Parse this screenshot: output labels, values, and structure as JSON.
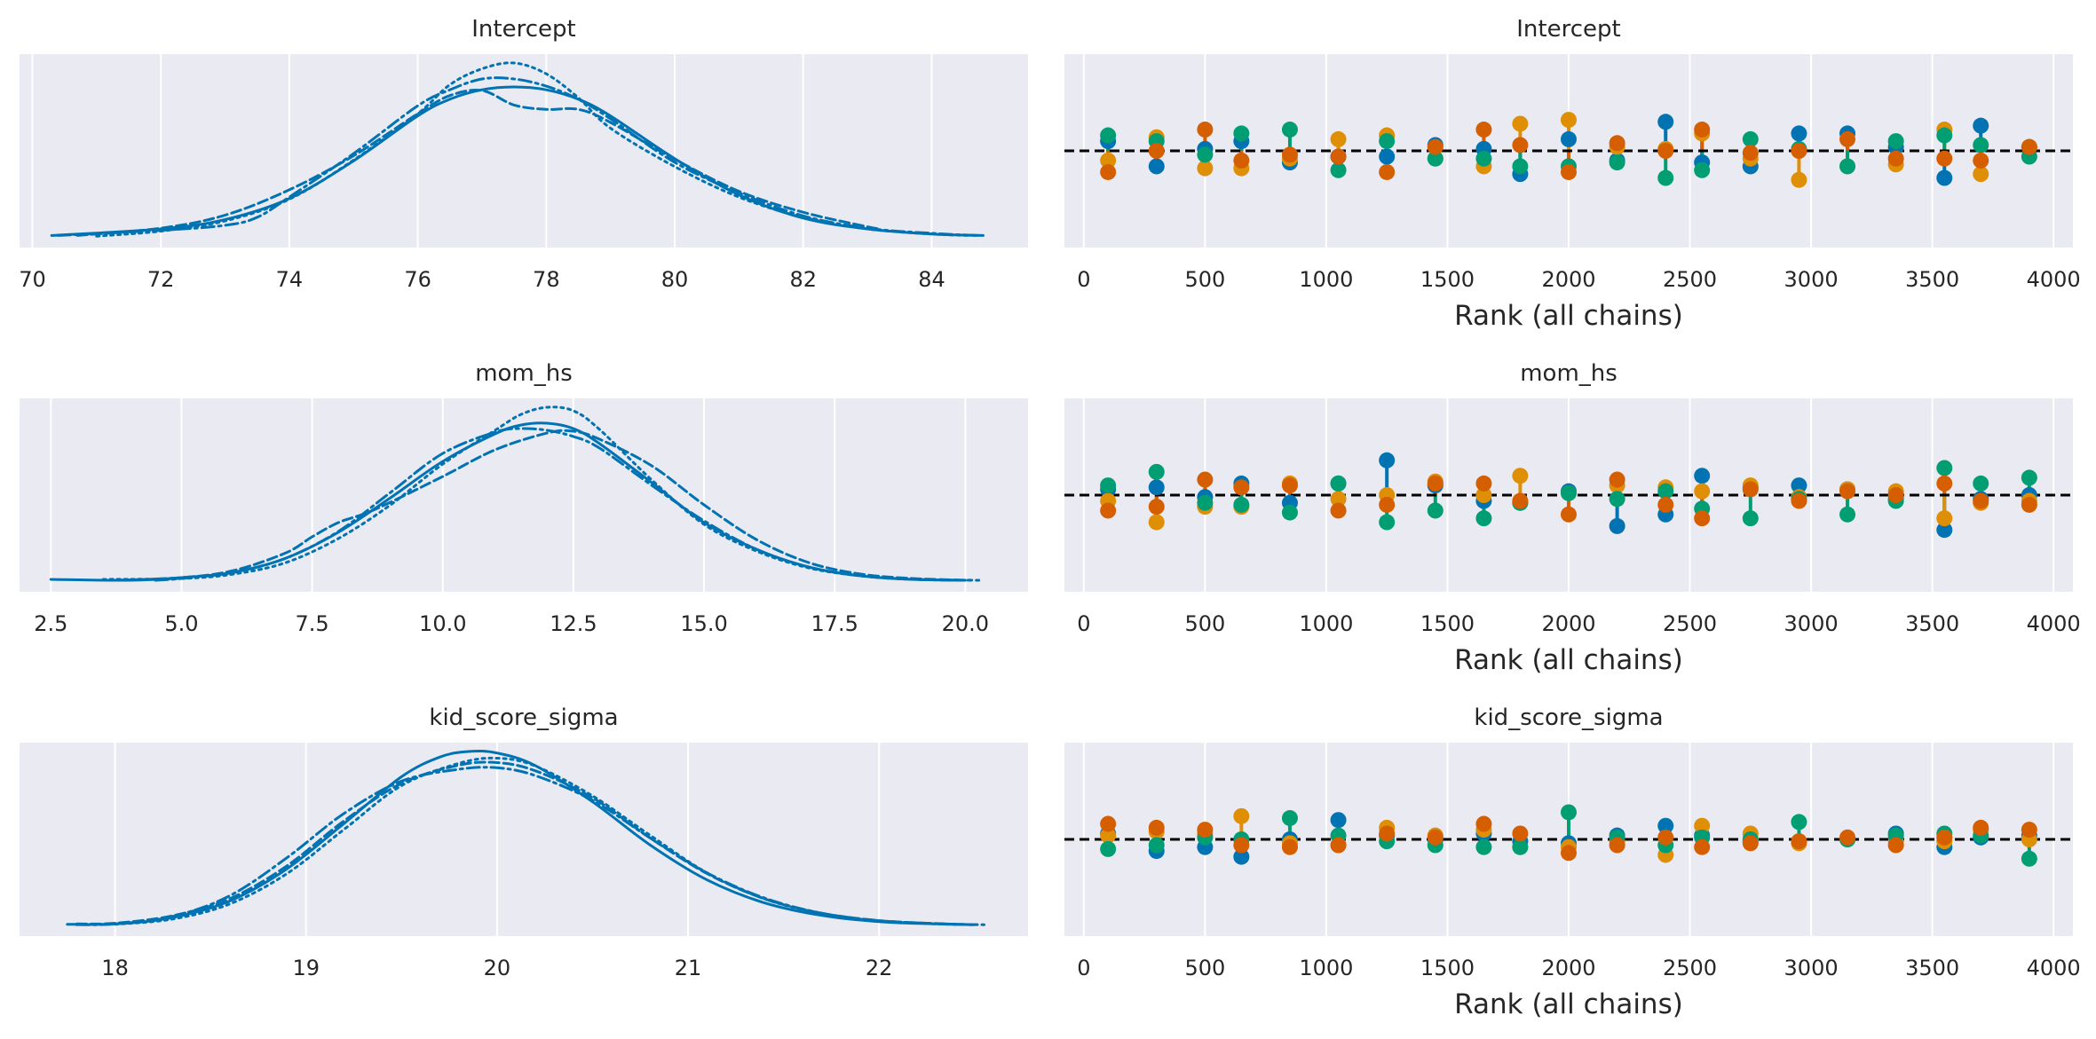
{
  "figure": {
    "background": "#ffffff",
    "axes_facecolor": "#eaeaf2",
    "grid_color": "#ffffff",
    "line_color": "#0173b2",
    "chain_colors": [
      "#0173b2",
      "#de8f05",
      "#029e73",
      "#d55e00"
    ],
    "reference_line_color": "#000000"
  },
  "chart_data": [
    {
      "type": "line",
      "panel": "Intercept density",
      "title": "Intercept",
      "xlabel": "",
      "xlim": [
        69.8,
        85.5
      ],
      "xticks": [
        70,
        72,
        74,
        76,
        78,
        80,
        82,
        84
      ],
      "xtick_labels": [
        "70",
        "72",
        "74",
        "76",
        "78",
        "80",
        "82",
        "84"
      ],
      "yticks_visible": false,
      "grid": "vertical",
      "series": [
        {
          "linestyle": "solid",
          "x": [
            70.3,
            72,
            73,
            74,
            75,
            76,
            76.5,
            77,
            77.5,
            78,
            78.5,
            79,
            80,
            81,
            82,
            83,
            84,
            84.8
          ],
          "y": [
            0.002,
            0.011,
            0.024,
            0.053,
            0.105,
            0.167,
            0.19,
            0.203,
            0.207,
            0.203,
            0.19,
            0.167,
            0.108,
            0.058,
            0.026,
            0.011,
            0.004,
            0.002
          ]
        },
        {
          "linestyle": "dashed",
          "x": [
            70.7,
            72,
            73,
            74,
            75,
            76,
            76.5,
            77,
            77.5,
            78,
            78.5,
            79,
            80,
            81,
            82,
            83,
            83.2
          ],
          "y": [
            0.002,
            0.012,
            0.03,
            0.065,
            0.112,
            0.17,
            0.195,
            0.202,
            0.182,
            0.176,
            0.176,
            0.158,
            0.107,
            0.063,
            0.034,
            0.014,
            0.011
          ]
        },
        {
          "linestyle": "dotted",
          "x": [
            71,
            72,
            73,
            74,
            75,
            76,
            76.5,
            77,
            77.5,
            78,
            78.5,
            79,
            80,
            81,
            82,
            83,
            84,
            84.6
          ],
          "y": [
            0.001,
            0.008,
            0.022,
            0.052,
            0.106,
            0.17,
            0.21,
            0.232,
            0.24,
            0.225,
            0.192,
            0.15,
            0.097,
            0.055,
            0.027,
            0.011,
            0.004,
            0.002
          ]
        },
        {
          "linestyle": "dashdot",
          "x": [
            70.4,
            72,
            73,
            73.5,
            74,
            75,
            76,
            76.5,
            77,
            77.5,
            78,
            78.5,
            79,
            80,
            81,
            82,
            83,
            84,
            84.7
          ],
          "y": [
            0.002,
            0.009,
            0.016,
            0.027,
            0.055,
            0.115,
            0.181,
            0.203,
            0.218,
            0.218,
            0.208,
            0.19,
            0.163,
            0.103,
            0.061,
            0.029,
            0.012,
            0.005,
            0.002
          ]
        }
      ]
    },
    {
      "type": "scatter",
      "panel": "Intercept rank",
      "title": "Intercept",
      "xlabel": "Rank (all chains)",
      "xlim": [
        -80,
        4080
      ],
      "ylim": [
        0,
        1
      ],
      "xticks": [
        0,
        500,
        1000,
        1500,
        2000,
        2500,
        3000,
        3500,
        4000
      ],
      "xtick_labels": [
        "0",
        "500",
        "1000",
        "1500",
        "2000",
        "2500",
        "3000",
        "3500",
        "4000"
      ],
      "yticks_visible": false,
      "grid": "vertical",
      "reference_line": {
        "y": 0.5,
        "style": "dashed"
      },
      "bin_centers": [
        100,
        300,
        500,
        650,
        850,
        1050,
        1250,
        1450,
        1650,
        1800,
        2000,
        2200,
        2400,
        2550,
        2750,
        2950,
        3150,
        3350,
        3550,
        3700,
        3900
      ],
      "series": [
        {
          "chain": 0,
          "values": [
            0.55,
            0.42,
            0.51,
            0.55,
            0.44,
            0.47,
            0.47,
            0.53,
            0.51,
            0.38,
            0.56,
            0.45,
            0.65,
            0.44,
            0.42,
            0.59,
            0.59,
            0.52,
            0.36,
            0.63,
            0.52
          ]
        },
        {
          "chain": 1,
          "values": [
            0.45,
            0.57,
            0.41,
            0.41,
            0.46,
            0.56,
            0.58,
            0.46,
            0.42,
            0.64,
            0.66,
            0.52,
            0.51,
            0.59,
            0.46,
            0.35,
            0.42,
            0.43,
            0.61,
            0.38,
            0.52
          ]
        },
        {
          "chain": 2,
          "values": [
            0.58,
            0.55,
            0.48,
            0.59,
            0.61,
            0.4,
            0.55,
            0.46,
            0.46,
            0.42,
            0.42,
            0.44,
            0.36,
            0.4,
            0.56,
            0.51,
            0.42,
            0.55,
            0.58,
            0.53,
            0.47
          ]
        },
        {
          "chain": 3,
          "values": [
            0.39,
            0.5,
            0.61,
            0.45,
            0.48,
            0.47,
            0.39,
            0.52,
            0.61,
            0.53,
            0.39,
            0.54,
            0.5,
            0.61,
            0.49,
            0.5,
            0.56,
            0.46,
            0.46,
            0.45,
            0.52
          ]
        }
      ]
    },
    {
      "type": "line",
      "panel": "mom_hs density",
      "title": "mom_hs",
      "xlabel": "",
      "xlim": [
        1.9,
        21.2
      ],
      "xticks": [
        2.5,
        5.0,
        7.5,
        10.0,
        12.5,
        15.0,
        17.5,
        20.0
      ],
      "xtick_labels": [
        "2.5",
        "5.0",
        "7.5",
        "10.0",
        "12.5",
        "15.0",
        "17.5",
        "20.0"
      ],
      "yticks_visible": false,
      "grid": "vertical",
      "series": [
        {
          "linestyle": "solid",
          "x": [
            2.5,
            4,
            5,
            6,
            7,
            8,
            9,
            10,
            11,
            11.5,
            12,
            12.5,
            13,
            14,
            15,
            16,
            17,
            18,
            19,
            20
          ],
          "y": [
            0.002,
            0.001,
            0.004,
            0.01,
            0.026,
            0.055,
            0.094,
            0.135,
            0.166,
            0.176,
            0.178,
            0.172,
            0.155,
            0.111,
            0.066,
            0.036,
            0.016,
            0.006,
            0.002,
            0.001
          ]
        },
        {
          "linestyle": "dashed",
          "x": [
            3.7,
            5,
            6,
            7,
            7.5,
            8,
            8.5,
            9,
            10,
            11,
            12,
            12.5,
            13,
            14,
            15,
            16,
            17,
            18,
            19,
            20.1
          ],
          "y": [
            0.001,
            0.004,
            0.012,
            0.032,
            0.05,
            0.066,
            0.076,
            0.089,
            0.118,
            0.148,
            0.167,
            0.169,
            0.16,
            0.13,
            0.086,
            0.047,
            0.021,
            0.008,
            0.003,
            0.001
          ]
        },
        {
          "linestyle": "dotted",
          "x": [
            3.5,
            5,
            6,
            7,
            8,
            9,
            10,
            11,
            11.5,
            12,
            12.5,
            13,
            14,
            15,
            16,
            17,
            18,
            19,
            20.3
          ],
          "y": [
            0.002,
            0.003,
            0.008,
            0.021,
            0.048,
            0.086,
            0.132,
            0.17,
            0.188,
            0.196,
            0.192,
            0.171,
            0.114,
            0.064,
            0.034,
            0.015,
            0.006,
            0.002,
            0.001
          ]
        },
        {
          "linestyle": "dashdot",
          "x": [
            4.5,
            5,
            6,
            7,
            8,
            9,
            10,
            11,
            11.5,
            12,
            12.5,
            13,
            14,
            15,
            16,
            17,
            18,
            19,
            20
          ],
          "y": [
            0.001,
            0.003,
            0.01,
            0.026,
            0.056,
            0.1,
            0.144,
            0.168,
            0.172,
            0.17,
            0.163,
            0.15,
            0.108,
            0.068,
            0.036,
            0.016,
            0.006,
            0.002,
            0.001
          ]
        }
      ]
    },
    {
      "type": "scatter",
      "panel": "mom_hs rank",
      "title": "mom_hs",
      "xlabel": "Rank (all chains)",
      "xlim": [
        -80,
        4080
      ],
      "ylim": [
        0,
        1
      ],
      "xticks": [
        0,
        500,
        1000,
        1500,
        2000,
        2500,
        3000,
        3500,
        4000
      ],
      "xtick_labels": [
        "0",
        "500",
        "1000",
        "1500",
        "2000",
        "2500",
        "3000",
        "3500",
        "4000"
      ],
      "yticks_visible": false,
      "grid": "vertical",
      "reference_line": {
        "y": 0.5,
        "style": "dashed"
      },
      "bin_centers": [
        100,
        300,
        500,
        650,
        850,
        1050,
        1250,
        1450,
        1650,
        1800,
        2000,
        2200,
        2400,
        2550,
        2750,
        2950,
        3150,
        3350,
        3550,
        3700,
        3900
      ],
      "series": [
        {
          "chain": 0,
          "values": [
            0.53,
            0.54,
            0.49,
            0.56,
            0.46,
            0.56,
            0.68,
            0.55,
            0.47,
            0.46,
            0.52,
            0.34,
            0.4,
            0.6,
            0.54,
            0.55,
            0.53,
            0.48,
            0.32,
            0.48,
            0.5
          ]
        },
        {
          "chain": 1,
          "values": [
            0.47,
            0.36,
            0.44,
            0.44,
            0.56,
            0.48,
            0.5,
            0.57,
            0.5,
            0.6,
            0.51,
            0.55,
            0.54,
            0.52,
            0.55,
            0.49,
            0.53,
            0.52,
            0.38,
            0.46,
            0.47
          ]
        },
        {
          "chain": 2,
          "values": [
            0.55,
            0.62,
            0.46,
            0.45,
            0.41,
            0.56,
            0.36,
            0.42,
            0.38,
            0.46,
            0.51,
            0.48,
            0.52,
            0.43,
            0.38,
            0.48,
            0.4,
            0.47,
            0.64,
            0.56,
            0.59
          ]
        },
        {
          "chain": 3,
          "values": [
            0.42,
            0.44,
            0.58,
            0.54,
            0.55,
            0.42,
            0.45,
            0.56,
            0.56,
            0.47,
            0.4,
            0.58,
            0.45,
            0.38,
            0.53,
            0.47,
            0.52,
            0.5,
            0.56,
            0.47,
            0.45
          ]
        }
      ]
    },
    {
      "type": "line",
      "panel": "kid_score_sigma density",
      "title": "kid_score_sigma",
      "xlabel": "",
      "xlim": [
        17.5,
        22.78
      ],
      "xticks": [
        18,
        19,
        20,
        21,
        22
      ],
      "xtick_labels": [
        "18",
        "19",
        "20",
        "21",
        "22"
      ],
      "yticks_visible": false,
      "grid": "vertical",
      "series": [
        {
          "linestyle": "solid",
          "x": [
            17.75,
            18,
            18.3,
            18.6,
            18.9,
            19.2,
            19.5,
            19.7,
            19.85,
            20,
            20.2,
            20.5,
            20.8,
            21.1,
            21.4,
            21.7,
            22,
            22.3,
            22.5
          ],
          "y": [
            0.003,
            0.004,
            0.021,
            0.066,
            0.153,
            0.276,
            0.402,
            0.455,
            0.47,
            0.466,
            0.432,
            0.334,
            0.218,
            0.123,
            0.061,
            0.027,
            0.01,
            0.004,
            0.002
          ]
        },
        {
          "linestyle": "dashed",
          "x": [
            17.8,
            18,
            18.3,
            18.6,
            18.9,
            19.2,
            19.5,
            19.8,
            20,
            20.2,
            20.5,
            20.8,
            21.1,
            21.4,
            21.7,
            22,
            22.3,
            22.5
          ],
          "y": [
            0.004,
            0.006,
            0.026,
            0.072,
            0.161,
            0.283,
            0.384,
            0.433,
            0.44,
            0.418,
            0.345,
            0.237,
            0.14,
            0.072,
            0.033,
            0.013,
            0.005,
            0.002
          ]
        },
        {
          "linestyle": "dotted",
          "x": [
            18,
            18.3,
            18.6,
            18.9,
            19.2,
            19.5,
            19.8,
            20,
            20.2,
            20.5,
            20.8,
            21.1,
            21.4,
            21.7,
            22,
            22.3,
            22.55
          ],
          "y": [
            0.003,
            0.017,
            0.058,
            0.14,
            0.26,
            0.378,
            0.438,
            0.452,
            0.431,
            0.35,
            0.244,
            0.142,
            0.072,
            0.032,
            0.012,
            0.004,
            0.002
          ]
        },
        {
          "linestyle": "dashdot",
          "x": [
            17.8,
            18,
            18.3,
            18.6,
            18.9,
            19.2,
            19.5,
            19.8,
            20,
            20.2,
            20.5,
            20.8,
            21.1,
            21.4,
            21.7,
            22,
            22.3,
            22.5
          ],
          "y": [
            0.002,
            0.004,
            0.024,
            0.08,
            0.183,
            0.303,
            0.39,
            0.422,
            0.426,
            0.405,
            0.338,
            0.237,
            0.142,
            0.074,
            0.033,
            0.013,
            0.005,
            0.002
          ]
        }
      ]
    },
    {
      "type": "scatter",
      "panel": "kid_score_sigma rank",
      "title": "kid_score_sigma",
      "xlabel": "Rank (all chains)",
      "xlim": [
        -80,
        4080
      ],
      "ylim": [
        0,
        1
      ],
      "xticks": [
        0,
        500,
        1000,
        1500,
        2000,
        2500,
        3000,
        3500,
        4000
      ],
      "xtick_labels": [
        "0",
        "500",
        "1000",
        "1500",
        "2000",
        "2500",
        "3000",
        "3500",
        "4000"
      ],
      "yticks_visible": false,
      "grid": "vertical",
      "reference_line": {
        "y": 0.5,
        "style": "dashed"
      },
      "bin_centers": [
        100,
        300,
        500,
        650,
        850,
        1050,
        1250,
        1450,
        1650,
        1800,
        2000,
        2200,
        2400,
        2550,
        2750,
        2950,
        3150,
        3350,
        3550,
        3700,
        3900
      ],
      "series": [
        {
          "chain": 0,
          "values": [
            0.53,
            0.44,
            0.46,
            0.41,
            0.5,
            0.6,
            0.52,
            0.5,
            0.53,
            0.49,
            0.48,
            0.52,
            0.57,
            0.52,
            0.49,
            0.49,
            0.5,
            0.53,
            0.46,
            0.51,
            0.52
          ]
        },
        {
          "chain": 1,
          "values": [
            0.52,
            0.54,
            0.53,
            0.62,
            0.48,
            0.47,
            0.56,
            0.52,
            0.55,
            0.46,
            0.46,
            0.49,
            0.42,
            0.57,
            0.53,
            0.48,
            0.5,
            0.49,
            0.49,
            0.55,
            0.5
          ]
        },
        {
          "chain": 2,
          "values": [
            0.45,
            0.47,
            0.51,
            0.5,
            0.61,
            0.52,
            0.49,
            0.47,
            0.46,
            0.46,
            0.64,
            0.51,
            0.47,
            0.51,
            0.5,
            0.59,
            0.5,
            0.52,
            0.53,
            0.52,
            0.4
          ]
        },
        {
          "chain": 3,
          "values": [
            0.58,
            0.56,
            0.55,
            0.47,
            0.46,
            0.47,
            0.53,
            0.51,
            0.58,
            0.53,
            0.43,
            0.47,
            0.51,
            0.46,
            0.48,
            0.49,
            0.51,
            0.47,
            0.51,
            0.56,
            0.55
          ]
        }
      ]
    }
  ]
}
